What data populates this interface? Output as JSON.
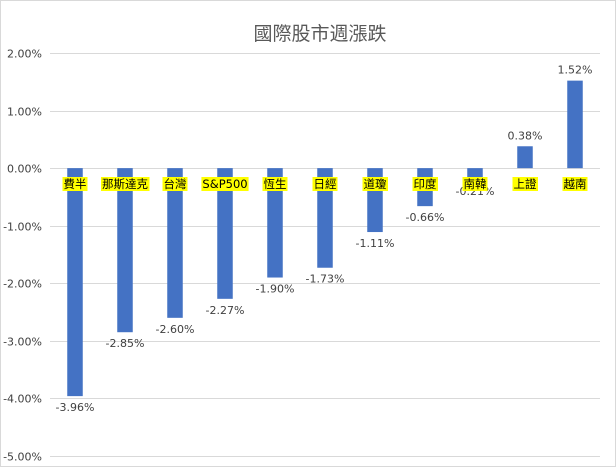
{
  "chart_data": {
    "type": "bar",
    "title": "國際股市週漲跌",
    "categories": [
      "費半",
      "那斯達克",
      "台灣",
      "S&P500",
      "恆生",
      "日經",
      "道瓊",
      "印度",
      "南韓",
      "上證",
      "越南"
    ],
    "values": [
      -3.96,
      -2.85,
      -2.6,
      -2.27,
      -1.9,
      -1.73,
      -1.11,
      -0.66,
      -0.21,
      0.38,
      1.52
    ],
    "value_labels": [
      "-3.96%",
      "-2.85%",
      "-2.60%",
      "-2.27%",
      "-1.90%",
      "-1.73%",
      "-1.11%",
      "-0.66%",
      "-0.21%",
      "0.38%",
      "1.52%"
    ],
    "ylim": [
      -5,
      2
    ],
    "yticks": [
      2,
      1,
      0,
      -1,
      -2,
      -3,
      -4,
      -5
    ],
    "ytick_labels": [
      "2.00%",
      "1.00%",
      "0.00%",
      "-1.00%",
      "-2.00%",
      "-3.00%",
      "-4.00%",
      "-5.00%"
    ],
    "xlabel": "",
    "ylabel": "",
    "grid": true,
    "bar_color": "#4472c4",
    "category_highlight_color": "#ffff00"
  }
}
